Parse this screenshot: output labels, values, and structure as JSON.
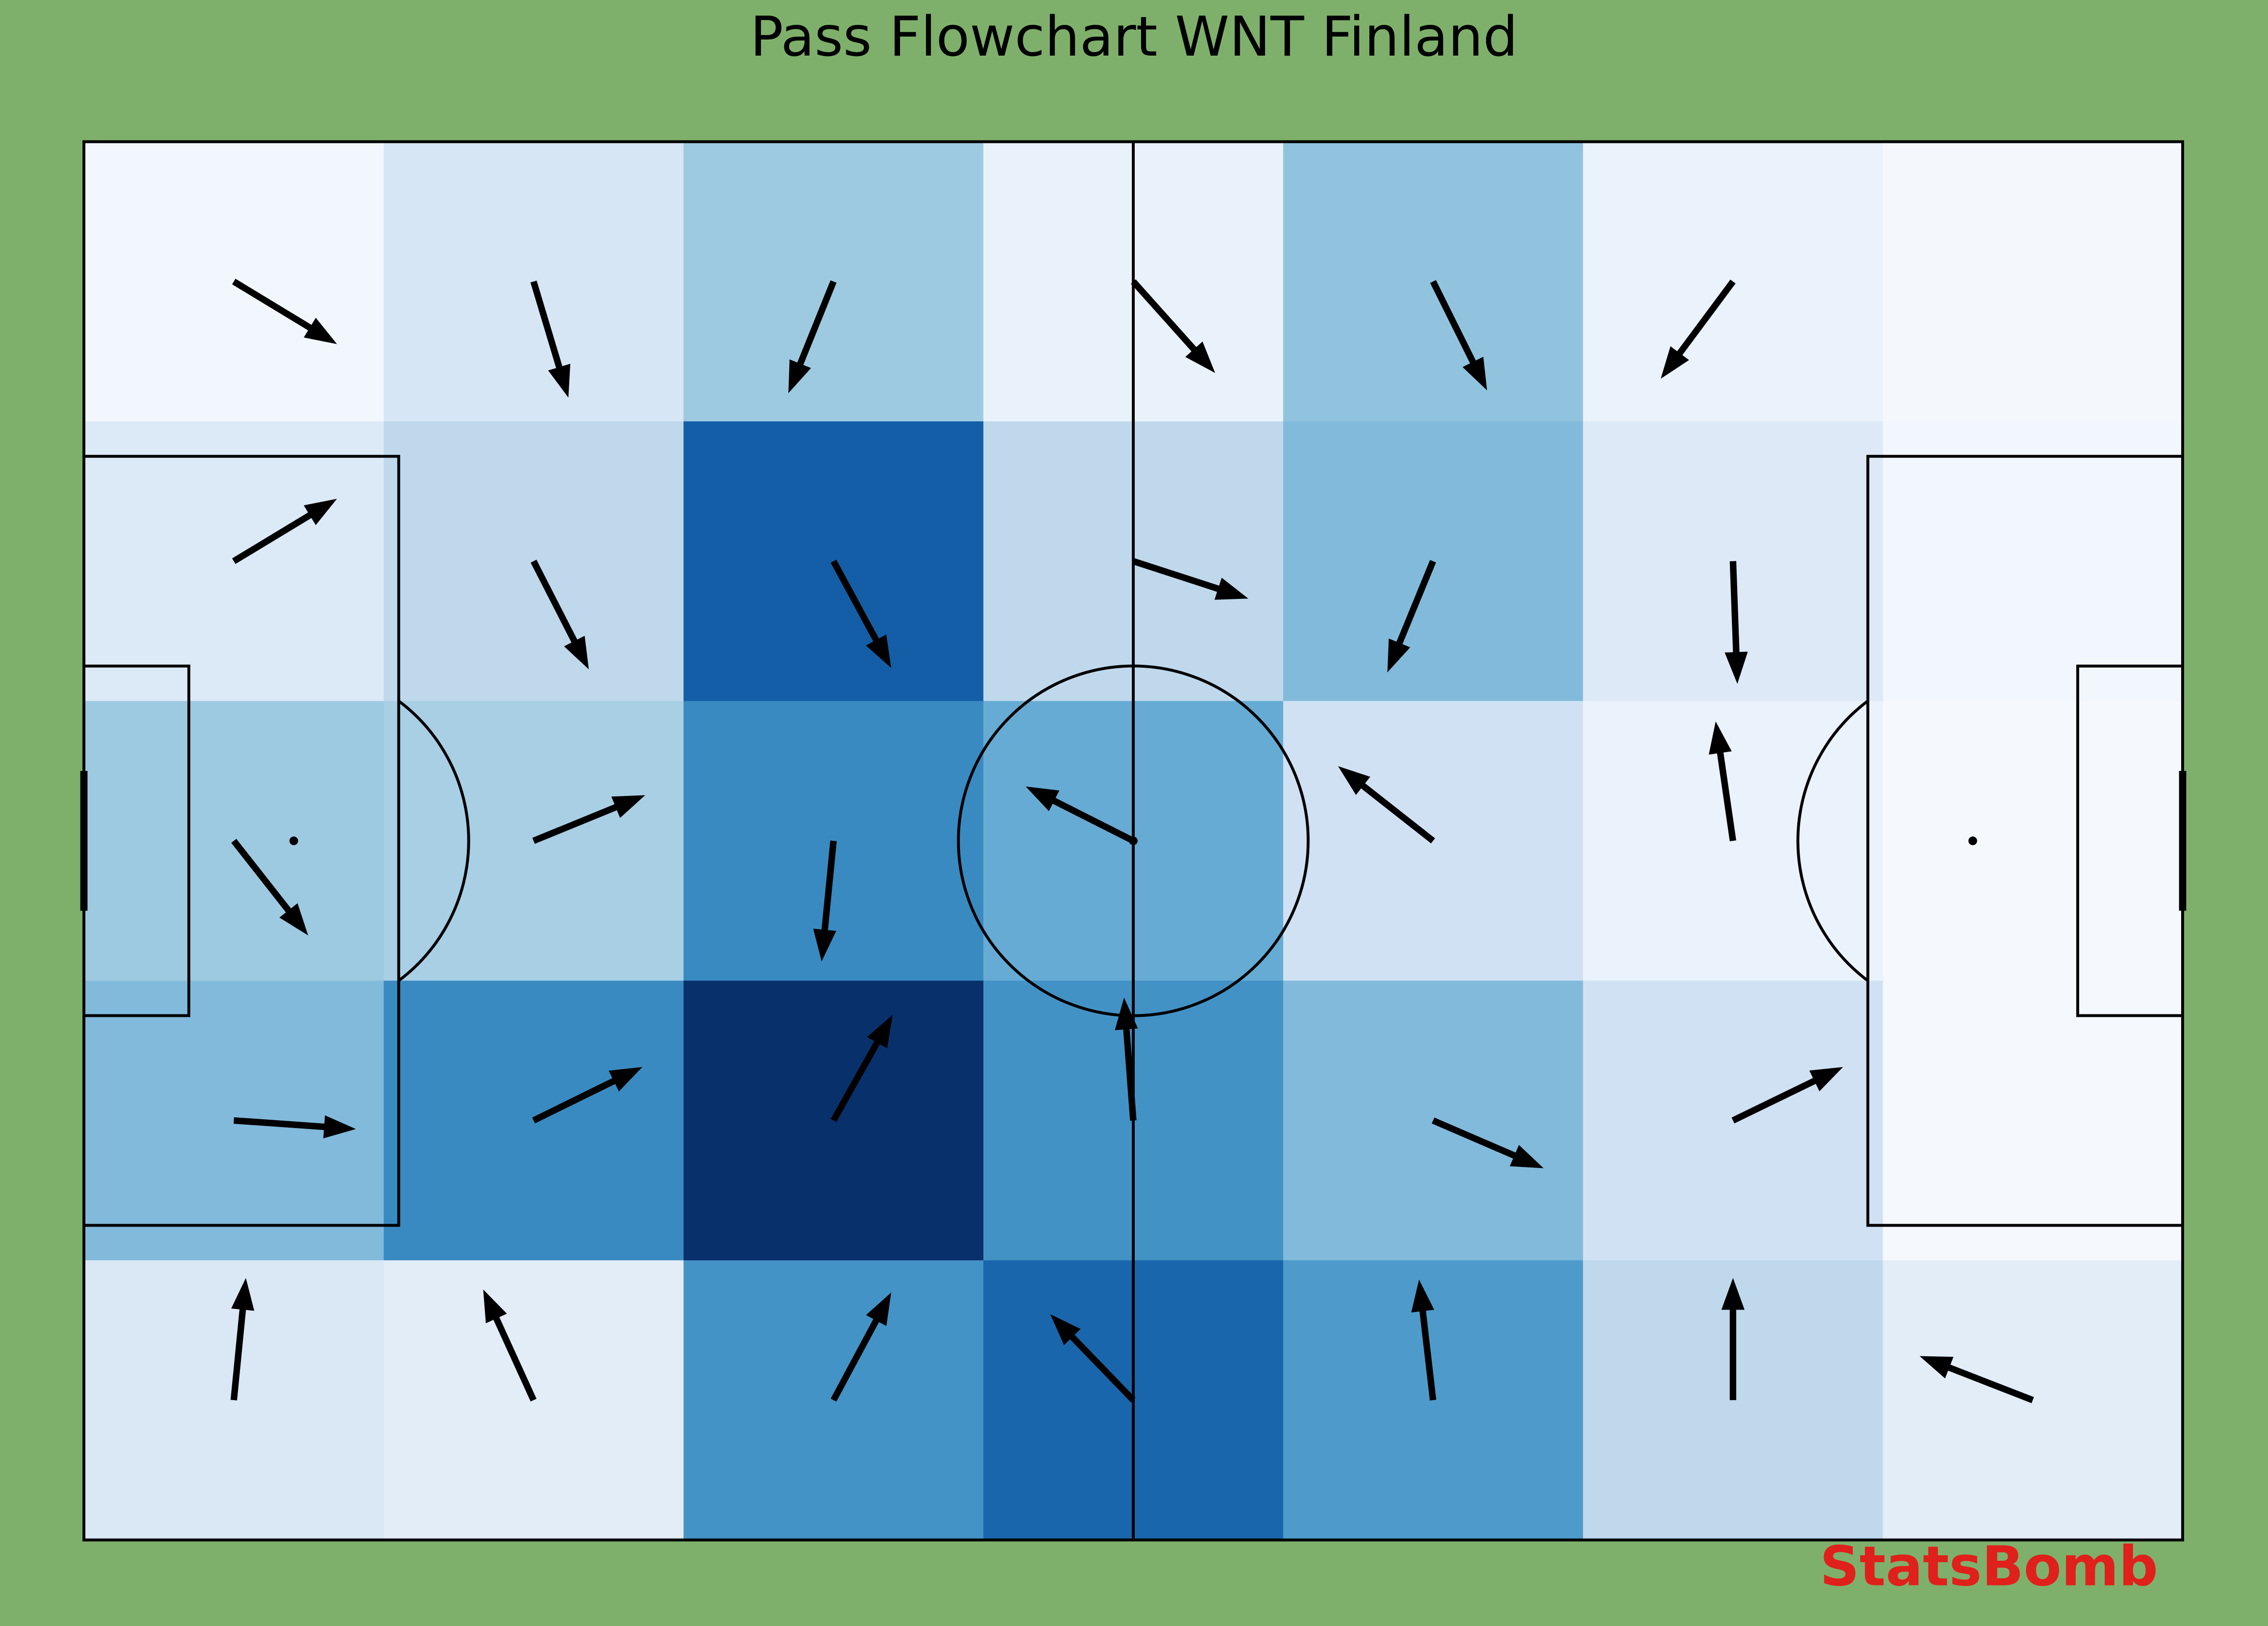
{
  "chart_data": {
    "type": "pass_flow",
    "title": "Pass Flowchart WNT Finland",
    "watermark": "StatsBomb",
    "pitch_length": 120,
    "pitch_width": 80,
    "background": "#7fb06b",
    "watermark_color": "#e0201b",
    "cell_colors": [
      [
        "#f2f7fe",
        "#d6e6f4",
        "#9ecae1",
        "#e9f2fb",
        "#91c3de",
        "#eaf2fb",
        "#f4f8fd"
      ],
      [
        "#dce9f6",
        "#bfd8ec",
        "#135ea7",
        "#bfd8ec",
        "#82badb",
        "#dde9f6",
        "#f2f7fd"
      ],
      [
        "#9ecae1",
        "#a9cfe5",
        "#3a8ac2",
        "#66abd4",
        "#d0e1f3",
        "#eaf2fb",
        "#f5f9fe"
      ],
      [
        "#82badb",
        "#3a8ac2",
        "#08306b",
        "#4392c6",
        "#82badb",
        "#d0e1f3",
        "#f5f9fe"
      ],
      [
        "#dae8f5",
        "#e2edf8",
        "#4493c7",
        "#1966ad",
        "#4e9bcb",
        "#bfd8ec",
        "#e2edf8"
      ]
    ],
    "arrows": [
      {
        "x": 8.57,
        "y": 8,
        "end_x": 14.47,
        "end_y": 11.58
      },
      {
        "x": 25.71,
        "y": 8,
        "end_x": 27.7,
        "end_y": 14.64
      },
      {
        "x": 42.86,
        "y": 8,
        "end_x": 40.28,
        "end_y": 14.39
      },
      {
        "x": 60,
        "y": 8,
        "end_x": 64.68,
        "end_y": 13.23
      },
      {
        "x": 77.14,
        "y": 8,
        "end_x": 80.23,
        "end_y": 14.23
      },
      {
        "x": 94.29,
        "y": 8,
        "end_x": 90.16,
        "end_y": 13.56
      },
      {
        "x": 8.57,
        "y": 24,
        "end_x": 14.47,
        "end_y": 20.43
      },
      {
        "x": 25.71,
        "y": 24,
        "end_x": 28.87,
        "end_y": 30.19
      },
      {
        "x": 42.86,
        "y": 24,
        "end_x": 46.16,
        "end_y": 30.11
      },
      {
        "x": 60,
        "y": 24,
        "end_x": 66.58,
        "end_y": 26.14
      },
      {
        "x": 77.14,
        "y": 24,
        "end_x": 74.53,
        "end_y": 30.36
      },
      {
        "x": 94.29,
        "y": 24,
        "end_x": 94.54,
        "end_y": 31.02
      },
      {
        "x": 8.57,
        "y": 40,
        "end_x": 12.82,
        "end_y": 45.41
      },
      {
        "x": 25.71,
        "y": 40,
        "end_x": 32.09,
        "end_y": 37.39
      },
      {
        "x": 42.86,
        "y": 40,
        "end_x": 42.18,
        "end_y": 46.9
      },
      {
        "x": 60,
        "y": 40,
        "end_x": 53.85,
        "end_y": 36.89
      },
      {
        "x": 77.14,
        "y": 40,
        "end_x": 71.71,
        "end_y": 35.73
      },
      {
        "x": 94.29,
        "y": 40,
        "end_x": 93.3,
        "end_y": 33.17
      },
      {
        "x": 8.57,
        "y": 56,
        "end_x": 15.55,
        "end_y": 56.49
      },
      {
        "x": 25.71,
        "y": 56,
        "end_x": 31.93,
        "end_y": 52.94
      },
      {
        "x": 42.86,
        "y": 56,
        "end_x": 46.24,
        "end_y": 49.96
      },
      {
        "x": 60,
        "y": 56,
        "end_x": 59.47,
        "end_y": 48.97
      },
      {
        "x": 77.14,
        "y": 56,
        "end_x": 83.46,
        "end_y": 58.73
      },
      {
        "x": 94.29,
        "y": 56,
        "end_x": 100.58,
        "end_y": 52.94
      },
      {
        "x": 8.57,
        "y": 72,
        "end_x": 9.26,
        "end_y": 65.01
      },
      {
        "x": 25.71,
        "y": 72,
        "end_x": 22.83,
        "end_y": 65.67
      },
      {
        "x": 42.86,
        "y": 72,
        "end_x": 46.16,
        "end_y": 65.84
      },
      {
        "x": 60,
        "y": 72,
        "end_x": 55.25,
        "end_y": 67.08
      },
      {
        "x": 77.14,
        "y": 72,
        "end_x": 76.34,
        "end_y": 65.1
      },
      {
        "x": 94.29,
        "y": 72,
        "end_x": 94.29,
        "end_y": 65.01
      },
      {
        "x": 111.43,
        "y": 72,
        "end_x": 104.96,
        "end_y": 69.48
      }
    ]
  }
}
